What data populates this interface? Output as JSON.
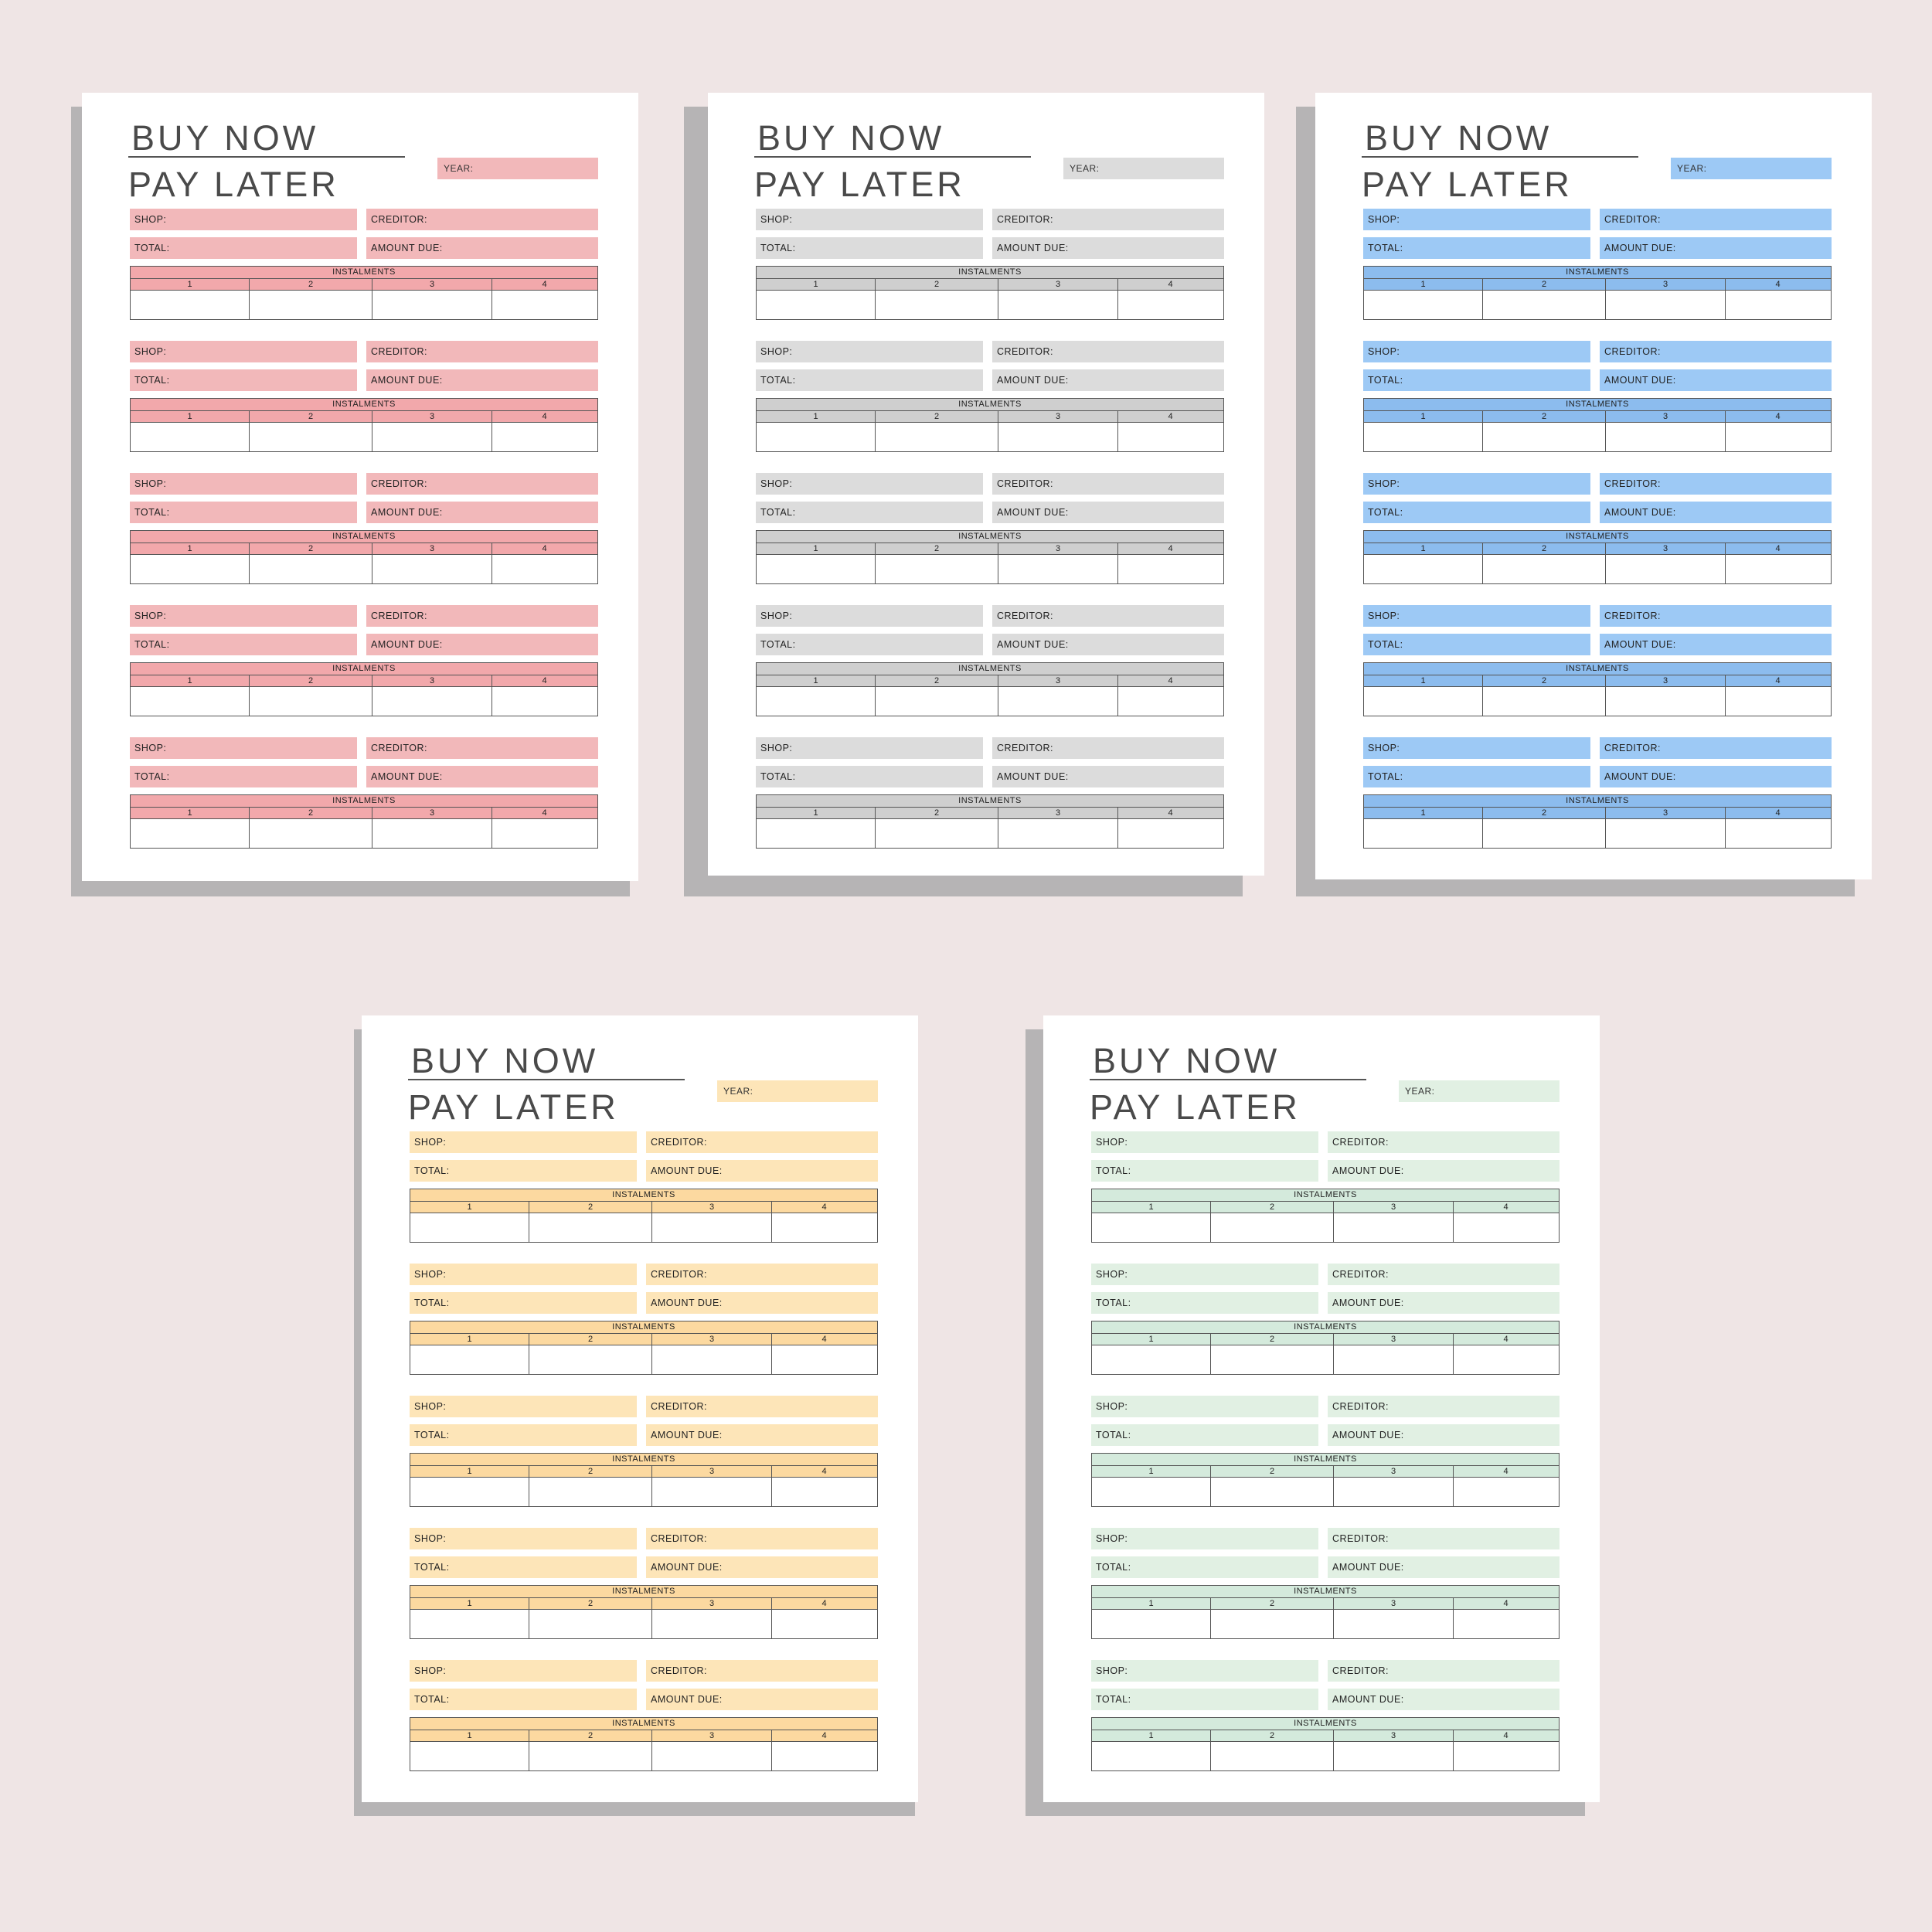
{
  "labels": {
    "title_line1": "BUY NOW",
    "title_line2": "PAY LATER",
    "year": "YEAR:",
    "shop": "SHOP:",
    "creditor": "CREDITOR:",
    "total": "TOTAL:",
    "amount_due": "AMOUNT DUE:",
    "instalments": "INSTALMENTS",
    "n1": "1",
    "n2": "2",
    "n3": "3",
    "n4": "4"
  },
  "pages": [
    {
      "variant": "pink",
      "fill": "#f2b8ba",
      "header": "#f2a8ab"
    },
    {
      "variant": "grey",
      "fill": "#dcdcdc",
      "header": "#cfcfcf"
    },
    {
      "variant": "blue",
      "fill": "#9dc9f5",
      "header": "#8cbcee"
    },
    {
      "variant": "yellow",
      "fill": "#fde5b8",
      "header": "#fcd9a0"
    },
    {
      "variant": "green",
      "fill": "#e1f0e3",
      "header": "#d4eadc"
    }
  ]
}
